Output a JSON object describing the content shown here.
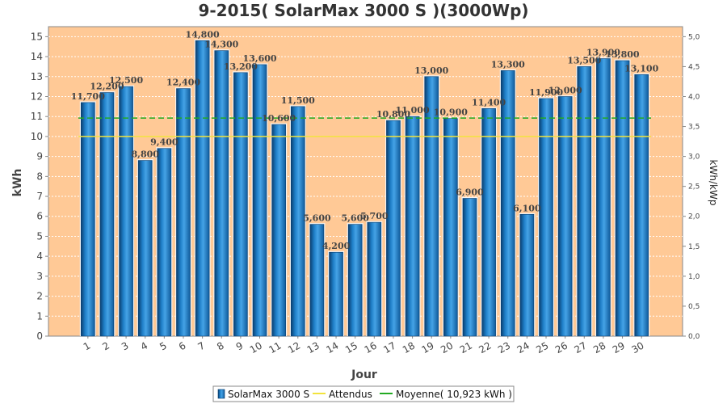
{
  "chart_data": {
    "type": "bar",
    "title": "9-2015( SolarMax 3000 S )(3000Wp)",
    "xlabel": "Jour",
    "ylabel": "kWh",
    "ylabel_right": "kWh/kWp",
    "ylim": [
      0,
      15.5
    ],
    "ylim_right": [
      0,
      5.1667
    ],
    "yticks": [
      "0",
      "1",
      "2",
      "3",
      "4",
      "5",
      "6",
      "7",
      "8",
      "9",
      "10",
      "11",
      "12",
      "13",
      "14",
      "15"
    ],
    "yticks_right": [
      "0,0",
      "0,5",
      "1,0",
      "1,5",
      "2,0",
      "2,5",
      "3,0",
      "3,5",
      "4,0",
      "4,5",
      "5,0"
    ],
    "categories": [
      "1",
      "2",
      "3",
      "4",
      "5",
      "6",
      "7",
      "8",
      "9",
      "10",
      "11",
      "12",
      "13",
      "14",
      "15",
      "16",
      "17",
      "18",
      "19",
      "20",
      "21",
      "22",
      "23",
      "24",
      "25",
      "26",
      "27",
      "28",
      "29",
      "30"
    ],
    "series": [
      {
        "name": "SolarMax 3000 S",
        "color": "#1a6fb5",
        "values": [
          11.7,
          12.2,
          12.5,
          8.8,
          9.4,
          12.4,
          14.8,
          14.3,
          13.2,
          13.6,
          10.6,
          11.5,
          5.6,
          4.2,
          5.6,
          5.7,
          10.8,
          11.0,
          13.0,
          10.9,
          6.9,
          11.4,
          13.3,
          6.1,
          11.9,
          12.0,
          13.5,
          13.9,
          13.8,
          13.1
        ],
        "labels": [
          "11,700",
          "12,200",
          "12,500",
          "8,800",
          "9,400",
          "12,400",
          "14,800",
          "14,300",
          "13,200",
          "13,600",
          "10,600",
          "11,500",
          "5,600",
          "4,200",
          "5,600",
          "5,700",
          "10,800",
          "11,000",
          "13,000",
          "10,900",
          "6,900",
          "11,400",
          "13,300",
          "6,100",
          "11,900",
          "12,000",
          "13,500",
          "13,900",
          "13,800",
          "13,100"
        ]
      }
    ],
    "attendus": {
      "name": "Attendus",
      "value": 10.0,
      "color": "#f2e33c"
    },
    "moyenne": {
      "name": "Moyenne( 10,923 kWh )",
      "value": 10.923,
      "color": "#22aa22"
    },
    "plot_background": "#ffc996",
    "grid": true,
    "legend": "bottom-center"
  }
}
